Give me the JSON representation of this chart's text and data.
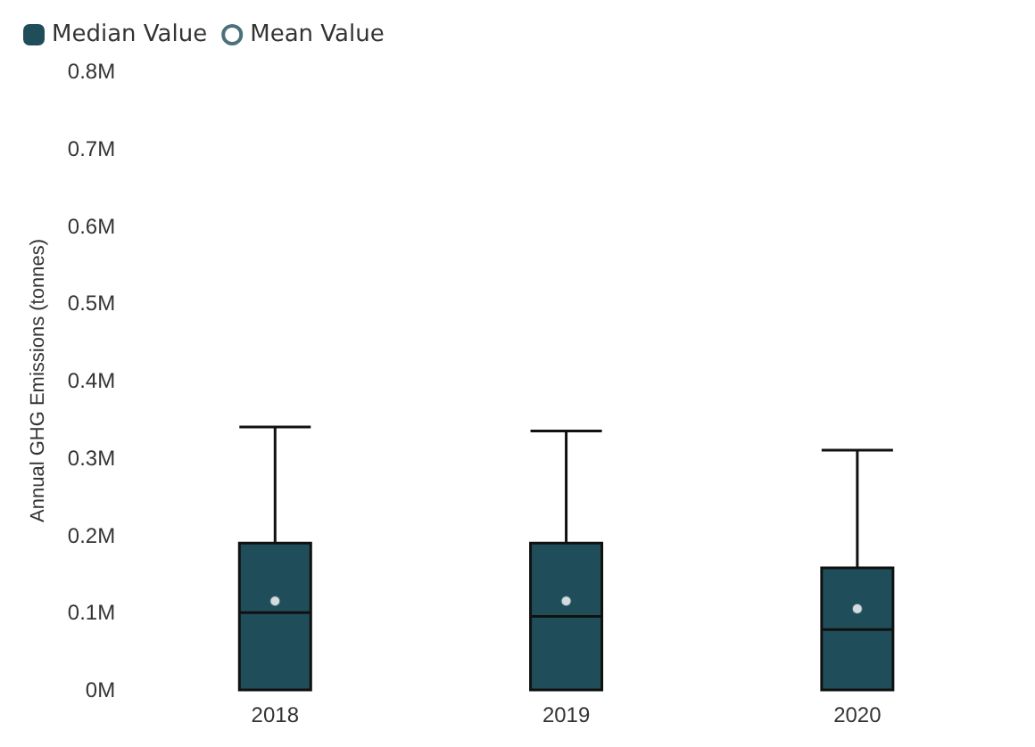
{
  "chart_data": {
    "type": "box",
    "ylabel": "Annual GHG Emissions (tonnes)",
    "categories": [
      "2018",
      "2019",
      "2020"
    ],
    "ylim": [
      0,
      0.8
    ],
    "yticks": [
      {
        "value": 0,
        "label": "0M"
      },
      {
        "value": 0.1,
        "label": "0.1M"
      },
      {
        "value": 0.2,
        "label": "0.2M"
      },
      {
        "value": 0.3,
        "label": "0.3M"
      },
      {
        "value": 0.4,
        "label": "0.4M"
      },
      {
        "value": 0.5,
        "label": "0.5M"
      },
      {
        "value": 0.6,
        "label": "0.6M"
      },
      {
        "value": 0.7,
        "label": "0.7M"
      },
      {
        "value": 0.8,
        "label": "0.8M"
      }
    ],
    "series": [
      {
        "name": "Median Value",
        "color": "#1f4e5a",
        "boxes": [
          {
            "low": 0,
            "q1": 0,
            "median": 0.1,
            "q3": 0.19,
            "high": 0.34
          },
          {
            "low": 0,
            "q1": 0,
            "median": 0.095,
            "q3": 0.19,
            "high": 0.335
          },
          {
            "low": 0,
            "q1": 0,
            "median": 0.078,
            "q3": 0.158,
            "high": 0.31
          }
        ]
      },
      {
        "name": "Mean Value",
        "type": "scatter",
        "color": "#ffffff",
        "values": [
          0.115,
          0.115,
          0.105
        ]
      }
    ],
    "legend": "top left",
    "grid": false
  }
}
